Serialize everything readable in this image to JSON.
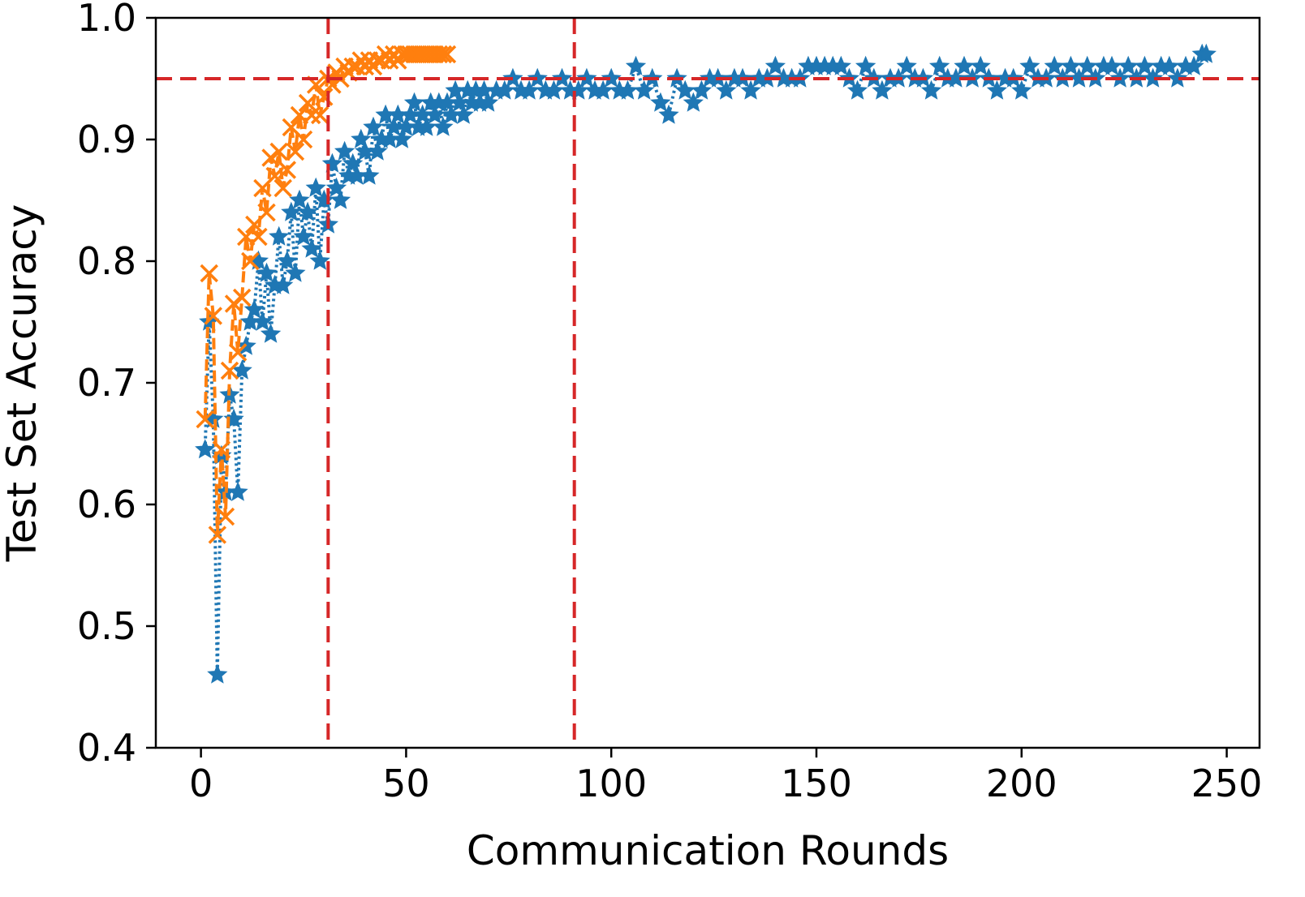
{
  "chart_data": {
    "type": "line",
    "title": "",
    "xlabel": "Communication Rounds",
    "ylabel": "Test Set Accuracy",
    "xlim": [
      -11,
      258
    ],
    "ylim": [
      0.4,
      1.0
    ],
    "x_ticks": [
      0,
      50,
      100,
      150,
      200,
      250
    ],
    "y_ticks": [
      0.4,
      0.5,
      0.6,
      0.7,
      0.8,
      0.9,
      1.0
    ],
    "x_tick_labels": [
      "0",
      "50",
      "100",
      "150",
      "200",
      "250"
    ],
    "y_tick_labels": [
      "0.4",
      "0.5",
      "0.6",
      "0.7",
      "0.8",
      "0.9",
      "1.0"
    ],
    "grid": false,
    "legend": "none",
    "reference_lines": {
      "horizontal_y": 0.95,
      "vertical_x": [
        31,
        91
      ],
      "color": "#d62728",
      "style": "dashed"
    },
    "series": [
      {
        "color": "#1f77b4",
        "marker": "star",
        "linestyle": "dotted",
        "x": [
          1,
          2,
          3,
          4,
          5,
          6,
          7,
          8,
          9,
          10,
          11,
          12,
          13,
          14,
          15,
          16,
          17,
          18,
          19,
          20,
          21,
          22,
          23,
          24,
          25,
          26,
          27,
          28,
          29,
          30,
          31,
          32,
          33,
          34,
          35,
          36,
          37,
          38,
          39,
          40,
          41,
          42,
          43,
          44,
          45,
          46,
          47,
          48,
          49,
          50,
          51,
          52,
          53,
          54,
          55,
          56,
          57,
          58,
          59,
          60,
          61,
          62,
          63,
          64,
          65,
          66,
          67,
          68,
          69,
          70,
          72,
          74,
          76,
          78,
          80,
          82,
          84,
          86,
          88,
          90,
          92,
          94,
          96,
          98,
          100,
          102,
          104,
          106,
          108,
          110,
          112,
          114,
          116,
          118,
          120,
          122,
          124,
          126,
          128,
          130,
          132,
          134,
          136,
          138,
          140,
          142,
          144,
          146,
          148,
          150,
          152,
          154,
          156,
          158,
          160,
          162,
          164,
          166,
          168,
          170,
          172,
          174,
          176,
          178,
          180,
          182,
          184,
          186,
          188,
          190,
          192,
          194,
          196,
          198,
          200,
          202,
          204,
          206,
          208,
          210,
          212,
          214,
          216,
          218,
          220,
          222,
          224,
          226,
          228,
          230,
          232,
          234,
          236,
          238,
          240,
          242,
          244,
          245
        ],
        "y": [
          0.645,
          0.75,
          0.67,
          0.46,
          0.64,
          0.61,
          0.69,
          0.67,
          0.61,
          0.71,
          0.73,
          0.75,
          0.76,
          0.8,
          0.75,
          0.79,
          0.74,
          0.78,
          0.82,
          0.78,
          0.8,
          0.84,
          0.79,
          0.85,
          0.82,
          0.84,
          0.81,
          0.86,
          0.8,
          0.85,
          0.83,
          0.88,
          0.86,
          0.85,
          0.89,
          0.87,
          0.88,
          0.87,
          0.9,
          0.89,
          0.87,
          0.91,
          0.89,
          0.9,
          0.92,
          0.9,
          0.91,
          0.92,
          0.9,
          0.91,
          0.92,
          0.93,
          0.91,
          0.92,
          0.91,
          0.93,
          0.92,
          0.93,
          0.91,
          0.93,
          0.92,
          0.94,
          0.93,
          0.92,
          0.94,
          0.93,
          0.94,
          0.93,
          0.94,
          0.93,
          0.94,
          0.94,
          0.95,
          0.94,
          0.94,
          0.95,
          0.94,
          0.94,
          0.95,
          0.94,
          0.94,
          0.95,
          0.94,
          0.94,
          0.95,
          0.94,
          0.94,
          0.96,
          0.94,
          0.95,
          0.93,
          0.92,
          0.95,
          0.94,
          0.93,
          0.94,
          0.95,
          0.95,
          0.94,
          0.95,
          0.95,
          0.94,
          0.95,
          0.95,
          0.96,
          0.95,
          0.95,
          0.95,
          0.96,
          0.96,
          0.96,
          0.96,
          0.96,
          0.95,
          0.94,
          0.96,
          0.95,
          0.94,
          0.95,
          0.95,
          0.96,
          0.95,
          0.95,
          0.94,
          0.96,
          0.95,
          0.95,
          0.96,
          0.95,
          0.96,
          0.95,
          0.94,
          0.95,
          0.95,
          0.94,
          0.96,
          0.95,
          0.95,
          0.96,
          0.95,
          0.96,
          0.95,
          0.96,
          0.95,
          0.96,
          0.96,
          0.95,
          0.96,
          0.95,
          0.96,
          0.95,
          0.96,
          0.96,
          0.95,
          0.96,
          0.96,
          0.97,
          0.97
        ]
      },
      {
        "color": "#ff7f0e",
        "marker": "x",
        "linestyle": "dashed",
        "x": [
          1,
          2,
          3,
          4,
          5,
          6,
          7,
          8,
          9,
          10,
          11,
          12,
          13,
          14,
          15,
          16,
          17,
          18,
          19,
          20,
          21,
          22,
          23,
          24,
          25,
          26,
          27,
          28,
          29,
          30,
          31,
          32,
          33,
          34,
          35,
          36,
          37,
          38,
          39,
          40,
          41,
          42,
          43,
          44,
          45,
          46,
          47,
          48,
          49,
          50,
          51,
          52,
          53,
          54,
          55,
          56,
          57,
          58,
          59,
          60
        ],
        "y": [
          0.67,
          0.79,
          0.755,
          0.575,
          0.645,
          0.59,
          0.71,
          0.765,
          0.725,
          0.77,
          0.82,
          0.8,
          0.83,
          0.82,
          0.86,
          0.84,
          0.885,
          0.87,
          0.89,
          0.86,
          0.875,
          0.91,
          0.89,
          0.92,
          0.9,
          0.93,
          0.92,
          0.945,
          0.92,
          0.935,
          0.95,
          0.945,
          0.955,
          0.95,
          0.96,
          0.955,
          0.96,
          0.96,
          0.965,
          0.96,
          0.965,
          0.96,
          0.965,
          0.965,
          0.97,
          0.965,
          0.97,
          0.965,
          0.97,
          0.97,
          0.97,
          0.97,
          0.97,
          0.97,
          0.97,
          0.97,
          0.97,
          0.97,
          0.97,
          0.97
        ]
      }
    ]
  }
}
